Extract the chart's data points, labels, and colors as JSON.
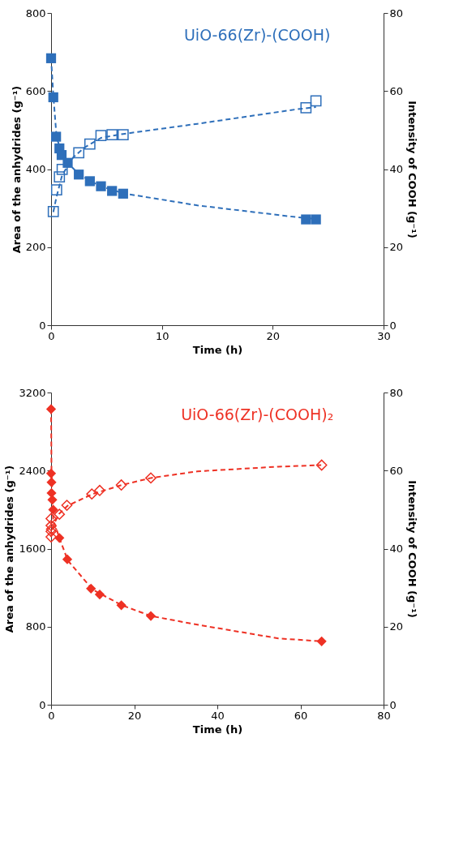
{
  "chart_data": [
    {
      "type": "scatter",
      "title": "UiO-66(Zr)-(COOH)",
      "xlabel": "Time (h)",
      "ylabel": "Area of the anhydrides (g⁻¹)",
      "y2label": "Intensity of COOH (g⁻¹)",
      "xlim": [
        0,
        30
      ],
      "xticks": [
        0,
        10,
        20,
        30
      ],
      "ylim": [
        0,
        800
      ],
      "yticks": [
        0,
        200,
        400,
        600,
        800
      ],
      "y2lim": [
        0,
        80
      ],
      "y2ticks": [
        0,
        20,
        40,
        60,
        80
      ],
      "series": [
        {
          "marker": "square",
          "color": "#2e6fba",
          "x": [
            0,
            0.2,
            0.45,
            0.75,
            0.95,
            1.5,
            2.5,
            3.5,
            4.5,
            5.5,
            6.5,
            23.0,
            23.9
          ],
          "values": [
            684,
            584,
            483,
            453,
            436,
            416,
            386,
            369,
            356,
            344,
            337,
            271,
            271
          ]
        },
        {
          "marker": "square",
          "axis": "y2",
          "color": "#2e6fba",
          "x": [
            0.2,
            0.5,
            0.75,
            1.0,
            2.5,
            3.5,
            4.5,
            5.5,
            6.5,
            23.0,
            23.9
          ],
          "values": [
            29.1,
            34.7,
            38.0,
            39.9,
            44.2,
            46.4,
            48.6,
            48.8,
            48.8,
            55.7,
            57.5
          ]
        },
        {
          "type": "line",
          "marker": "none",
          "line_style": "dashed",
          "color": "#2e6fba",
          "x": [
            0,
            0.2,
            0.5,
            1,
            1.5,
            2.5,
            3.5,
            4.5,
            6.5,
            13.2,
            22.1,
            23.9
          ],
          "values": [
            684,
            590,
            480,
            440,
            415,
            388,
            370,
            356,
            338,
            307,
            277,
            272
          ]
        },
        {
          "type": "line",
          "marker": "none",
          "line_style": "dashed",
          "axis": "y2",
          "color": "#2e6fba",
          "x": [
            0.2,
            0.5,
            1,
            2,
            3,
            4.5,
            6.5,
            13.2,
            22.1,
            23.9
          ],
          "values": [
            29,
            33,
            38.5,
            43,
            45.5,
            48,
            49,
            51.6,
            55.3,
            55.9
          ]
        }
      ]
    },
    {
      "type": "scatter",
      "title": "UiO-66(Zr)-(COOH)₂",
      "xlabel": "Time (h)",
      "ylabel": "Area of the anhydrides (g⁻¹)",
      "y2label": "Intensity of COOH (g⁻¹)",
      "xlim": [
        0,
        80
      ],
      "xticks": [
        0,
        20,
        40,
        60,
        80
      ],
      "ylim": [
        0,
        3200
      ],
      "yticks": [
        0,
        800,
        1600,
        2400,
        3200
      ],
      "y2lim": [
        0,
        80
      ],
      "y2ticks": [
        0,
        20,
        40,
        60,
        80
      ],
      "series": [
        {
          "marker": "diamond",
          "color": "#ee3124",
          "x": [
            0,
            0,
            0.1,
            0.1,
            0.3,
            0.5,
            2.0,
            3.9,
            9.6,
            11.7,
            16.9,
            24.0,
            65.1
          ],
          "values": [
            3030,
            2370,
            2280,
            2170,
            2100,
            2000,
            1710,
            1490,
            1190,
            1130,
            1020,
            910,
            650
          ]
        },
        {
          "marker": "diamond",
          "axis": "y2",
          "color": "#ee3124",
          "x": [
            0,
            0,
            0.1,
            0,
            0,
            2.0,
            3.8,
            9.8,
            11.7,
            16.9,
            24.0,
            65.1
          ],
          "values": [
            47.7,
            45.9,
            45.0,
            44.4,
            43.0,
            48.8,
            51.1,
            54.0,
            54.9,
            56.3,
            58.1,
            61.4
          ]
        },
        {
          "type": "line",
          "marker": "none",
          "line_style": "dashed",
          "color": "#ee3124",
          "x": [
            0,
            0.1,
            0.5,
            2,
            4,
            10,
            17,
            24,
            35.2,
            54.7,
            65
          ],
          "values": [
            3030,
            2400,
            1900,
            1710,
            1480,
            1180,
            1020,
            910,
            820,
            680,
            650
          ]
        },
        {
          "type": "line",
          "marker": "none",
          "line_style": "dashed",
          "axis": "y2",
          "color": "#ee3124",
          "x": [
            0,
            0.5,
            2,
            4,
            10,
            17,
            24,
            35.2,
            54.7,
            65
          ],
          "values": [
            43,
            46,
            49,
            51,
            54,
            56.3,
            58.1,
            59.8,
            61.0,
            61.4
          ]
        }
      ]
    }
  ]
}
